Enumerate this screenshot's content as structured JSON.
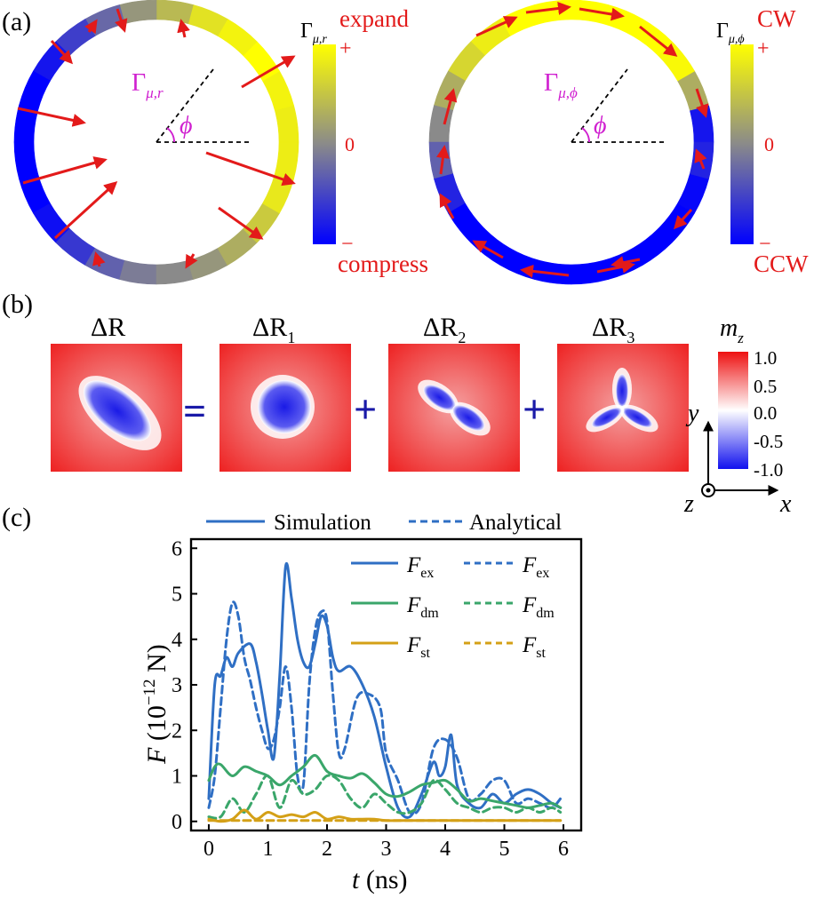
{
  "panel_a": {
    "label": "(a)",
    "left": {
      "gamma_main": "Γ",
      "gamma_sub": "μ,r",
      "angle": "ϕ",
      "bar_sym": "Γ",
      "bar_sub": "μ,r",
      "top_word": "expand",
      "plus": "+",
      "zero": "0",
      "minus": "−",
      "bottom_word": "compress",
      "segments": [
        0.85,
        0.9,
        1,
        0.9,
        0.75,
        0.4,
        0.1,
        -0.25,
        -0.55,
        -0.85,
        -1,
        -1,
        -1,
        -1,
        -0.9,
        -0.6,
        -0.3,
        -0.1,
        0,
        0.1,
        0.3,
        0.55,
        0.8,
        0.85
      ]
    },
    "right": {
      "gamma_main": "Γ",
      "gamma_sub": "μ,ϕ",
      "angle": "ϕ",
      "bar_sym": "Γ",
      "bar_sub": "μ,ϕ",
      "top_word": "CW",
      "plus": "+",
      "zero": "0",
      "minus": "−",
      "bottom_word": "CCW",
      "segments": [
        -0.85,
        0.3,
        0.95,
        1,
        1,
        1,
        1,
        1,
        0.85,
        0.65,
        0.3,
        0,
        -0.3,
        -0.75,
        -1,
        -1,
        -1,
        -1,
        -1,
        -1,
        -1,
        -1,
        -0.95,
        -0.75
      ]
    }
  },
  "panel_b": {
    "label": "(b)",
    "titles": [
      "ΔR",
      "ΔR1",
      "ΔR2",
      "ΔR3"
    ],
    "title_main": [
      "ΔR",
      "ΔR",
      "ΔR",
      "ΔR"
    ],
    "title_sub": [
      "",
      "1",
      "2",
      "3"
    ],
    "ops": [
      "=",
      "+",
      "+"
    ],
    "colorbar_title_main": "m",
    "colorbar_title_sub": "z",
    "colorbar_ticks": [
      "1.0",
      "0.5",
      "0.0",
      "-0.5",
      "-1.0"
    ],
    "axes": {
      "x": "x",
      "y": "y",
      "z": "z"
    }
  },
  "panel_c": {
    "label": "(c)",
    "legend_simulation": "Simulation",
    "legend_analytical": "Analytical",
    "legend_terms_main": [
      "F",
      "F",
      "F"
    ],
    "legend_terms_sub": [
      "ex",
      "dm",
      "st"
    ],
    "xlabel_main": "t",
    "xlabel_unit": "(ns)",
    "ylabel_main": "F",
    "ylabel_unit": "(10",
    "ylabel_exp": "−12",
    "ylabel_tail": " N)",
    "colors": {
      "ex": "#2f6fc4",
      "dm": "#3aa66a",
      "st": "#d4a017"
    }
  },
  "chart_data": {
    "type": "line",
    "xlabel": "t (ns)",
    "ylabel": "F (10^-12 N)",
    "xlim": [
      -0.3,
      6.3
    ],
    "ylim": [
      -0.2,
      6.2
    ],
    "xticks": [
      "0",
      "1",
      "2",
      "3",
      "4",
      "5",
      "6"
    ],
    "yticks": [
      "0",
      "1",
      "2",
      "3",
      "4",
      "5",
      "6"
    ],
    "legend": "top-right",
    "grid": false,
    "series": [
      {
        "name": "F_ex (Simulation)",
        "style": "solid",
        "color": "#2f6fc4",
        "x": [
          0,
          0.1,
          0.2,
          0.3,
          0.4,
          0.5,
          0.7,
          0.8,
          0.9,
          1.0,
          1.1,
          1.2,
          1.3,
          1.4,
          1.5,
          1.6,
          1.7,
          1.8,
          1.9,
          2.0,
          2.1,
          2.2,
          2.4,
          2.6,
          2.8,
          3.0,
          3.2,
          3.4,
          3.6,
          3.8,
          3.9,
          4.0,
          4.1,
          4.2,
          4.4,
          4.6,
          4.8,
          5.0,
          5.2,
          5.4,
          5.6,
          5.8,
          5.95
        ],
        "y": [
          0.5,
          3.0,
          3.2,
          3.6,
          3.4,
          3.7,
          3.9,
          3.5,
          2.8,
          2.0,
          1.4,
          3.2,
          5.6,
          4.9,
          4.0,
          3.5,
          3.4,
          3.9,
          4.5,
          4.3,
          3.6,
          3.3,
          3.4,
          3.0,
          2.3,
          1.2,
          0.3,
          0.1,
          0.6,
          1.3,
          1.0,
          1.2,
          1.9,
          0.8,
          0.4,
          0.3,
          0.6,
          0.4,
          0.6,
          0.7,
          0.6,
          0.4,
          0.3
        ]
      },
      {
        "name": "F_ex (Analytical)",
        "style": "dashed",
        "color": "#2f6fc4",
        "x": [
          0,
          0.1,
          0.2,
          0.3,
          0.4,
          0.5,
          0.6,
          0.7,
          0.8,
          0.9,
          1.0,
          1.1,
          1.2,
          1.3,
          1.4,
          1.5,
          1.6,
          1.7,
          1.8,
          1.9,
          2.0,
          2.1,
          2.2,
          2.3,
          2.5,
          2.7,
          2.9,
          3.0,
          3.2,
          3.4,
          3.6,
          3.8,
          4.0,
          4.2,
          4.4,
          4.6,
          4.8,
          5.0,
          5.2,
          5.4,
          5.6,
          5.8,
          5.95
        ],
        "y": [
          0.3,
          1.0,
          2.5,
          4.0,
          4.8,
          4.5,
          3.6,
          3.1,
          2.5,
          2.0,
          1.6,
          1.8,
          2.5,
          3.4,
          2.5,
          1.0,
          0.8,
          3.0,
          4.2,
          4.6,
          4.4,
          2.8,
          1.5,
          1.6,
          2.7,
          2.8,
          2.5,
          1.5,
          0.9,
          0.2,
          0.4,
          1.6,
          1.8,
          1.4,
          0.5,
          0.6,
          0.9,
          0.9,
          0.4,
          0.5,
          0.4,
          0.3,
          0.5
        ]
      },
      {
        "name": "F_dm (Simulation)",
        "style": "solid",
        "color": "#3aa66a",
        "x": [
          0,
          0.1,
          0.2,
          0.4,
          0.6,
          0.8,
          1.0,
          1.2,
          1.4,
          1.6,
          1.8,
          2.0,
          2.2,
          2.4,
          2.6,
          2.8,
          3.0,
          3.2,
          3.4,
          3.6,
          3.8,
          4.0,
          4.2,
          4.4,
          4.6,
          4.8,
          5.0,
          5.2,
          5.4,
          5.6,
          5.8,
          5.95
        ],
        "y": [
          0.9,
          1.2,
          1.25,
          1.0,
          1.2,
          1.1,
          1.0,
          0.8,
          1.0,
          1.2,
          1.45,
          1.1,
          1.0,
          0.95,
          1.05,
          0.85,
          0.6,
          0.55,
          0.65,
          0.8,
          0.85,
          0.9,
          0.7,
          0.45,
          0.5,
          0.45,
          0.4,
          0.35,
          0.3,
          0.35,
          0.4,
          0.3
        ]
      },
      {
        "name": "F_dm (Analytical)",
        "style": "dashed",
        "color": "#3aa66a",
        "x": [
          0,
          0.2,
          0.4,
          0.6,
          0.8,
          1.0,
          1.2,
          1.4,
          1.6,
          1.8,
          2.0,
          2.2,
          2.4,
          2.6,
          2.8,
          3.0,
          3.2,
          3.4,
          3.6,
          3.8,
          4.0,
          4.2,
          4.4,
          4.6,
          4.8,
          5.0,
          5.2,
          5.4,
          5.6,
          5.8,
          5.95
        ],
        "y": [
          0.1,
          0.1,
          0.5,
          0.2,
          0.6,
          1.0,
          0.3,
          0.9,
          0.6,
          0.7,
          1.0,
          0.9,
          0.5,
          0.3,
          0.6,
          0.4,
          0.2,
          0.2,
          0.4,
          0.9,
          0.7,
          0.4,
          0.3,
          0.2,
          0.3,
          0.3,
          0.2,
          0.3,
          0.2,
          0.3,
          0.2
        ]
      },
      {
        "name": "F_st (Simulation)",
        "style": "solid",
        "color": "#d4a017",
        "x": [
          0,
          0.2,
          0.4,
          0.6,
          0.8,
          1.0,
          1.2,
          1.4,
          1.6,
          1.8,
          2.0,
          2.2,
          2.4,
          2.6,
          2.8,
          3.0,
          3.5,
          4.0,
          4.5,
          5.0,
          5.5,
          5.95
        ],
        "y": [
          0.05,
          0.0,
          0.05,
          0.25,
          0.05,
          0.2,
          0.1,
          0.15,
          0.1,
          0.2,
          0.05,
          0.1,
          0.05,
          0.05,
          0.05,
          0.02,
          0.02,
          0.02,
          0.02,
          0.02,
          0.02,
          0.02
        ]
      },
      {
        "name": "F_st (Analytical)",
        "style": "dashed",
        "color": "#d4a017",
        "x": [
          0,
          1,
          2,
          3,
          4,
          5,
          5.95
        ],
        "y": [
          0.02,
          0.02,
          0.02,
          0.02,
          0.02,
          0.02,
          0.02
        ]
      }
    ]
  }
}
